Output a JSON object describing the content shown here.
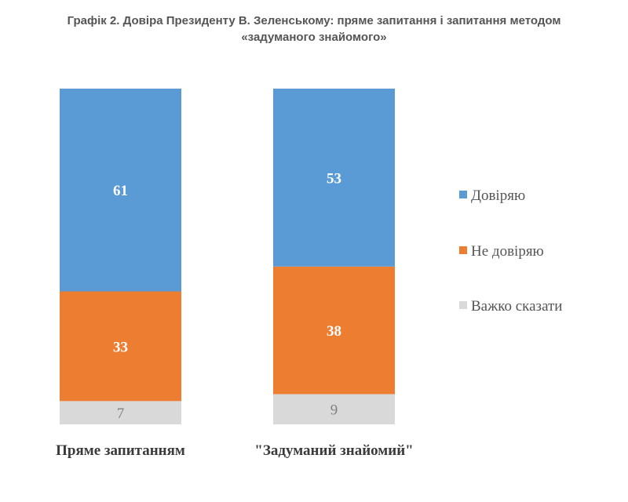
{
  "chart_data": {
    "type": "bar",
    "stacked": true,
    "title": "Графік 2. Довіра Президенту В. Зеленському: пряме запитання і запитання методом «задуманого знайомого»",
    "title_lines": [
      "Графік 2. Довіра Президенту В. Зеленському: пряме запитання і запитання методом",
      "«задуманого знайомого»"
    ],
    "categories": [
      "Пряме запитанням",
      "\"Задуманий знайомий\""
    ],
    "series": [
      {
        "name": "Довіряю",
        "color": "#5B9BD5",
        "values": [
          61,
          53
        ]
      },
      {
        "name": "Не довіряю",
        "color": "#ED7D31",
        "values": [
          33,
          38
        ]
      },
      {
        "name": "Важко сказати",
        "color": "#D9D9D9",
        "values": [
          7,
          9
        ]
      }
    ],
    "legend_position": "right",
    "grid": false,
    "xlabel": "",
    "ylabel": ""
  }
}
